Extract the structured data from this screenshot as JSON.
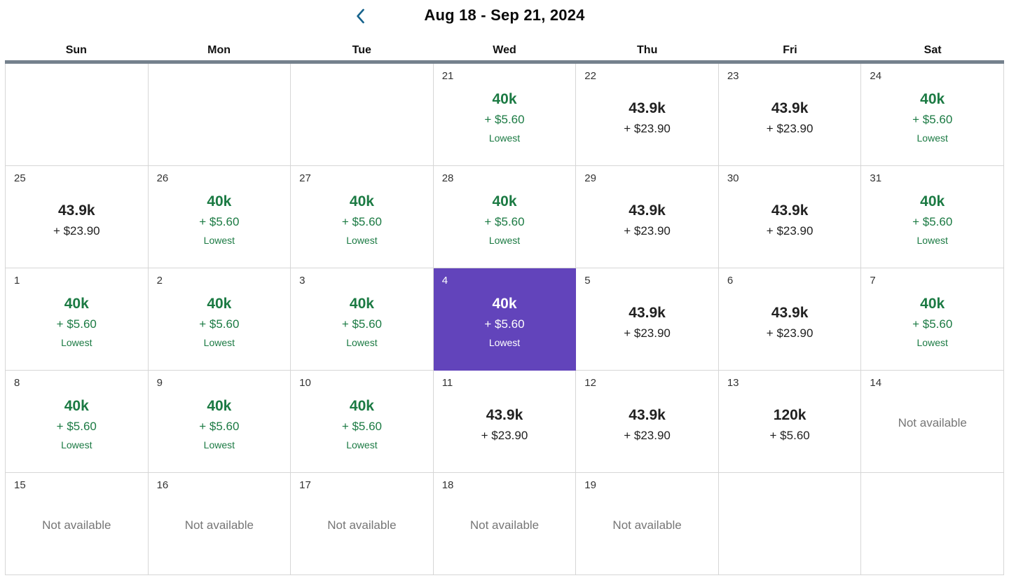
{
  "header": {
    "title": "Aug 18 - Sep 21, 2024"
  },
  "weekdays": [
    "Sun",
    "Mon",
    "Tue",
    "Wed",
    "Thu",
    "Fri",
    "Sat"
  ],
  "labels": {
    "not_available": "Not available",
    "lowest_tag": "Lowest"
  },
  "colors": {
    "lowest_green": "#1b7a43",
    "selected_purple": "#6244bb",
    "header_bar_gray": "#75818d",
    "grid_border": "#d6d6d6",
    "unavailable_gray": "#767676",
    "chevron_blue": "#16638c",
    "price_black": "#212121"
  },
  "weeks": [
    [
      {
        "empty": true
      },
      {
        "empty": true
      },
      {
        "empty": true
      },
      {
        "date": "21",
        "miles": "40k",
        "fee": "+ $5.60",
        "lowest": true
      },
      {
        "date": "22",
        "miles": "43.9k",
        "fee": "+ $23.90"
      },
      {
        "date": "23",
        "miles": "43.9k",
        "fee": "+ $23.90"
      },
      {
        "date": "24",
        "miles": "40k",
        "fee": "+ $5.60",
        "lowest": true
      }
    ],
    [
      {
        "date": "25",
        "miles": "43.9k",
        "fee": "+ $23.90"
      },
      {
        "date": "26",
        "miles": "40k",
        "fee": "+ $5.60",
        "lowest": true
      },
      {
        "date": "27",
        "miles": "40k",
        "fee": "+ $5.60",
        "lowest": true
      },
      {
        "date": "28",
        "miles": "40k",
        "fee": "+ $5.60",
        "lowest": true
      },
      {
        "date": "29",
        "miles": "43.9k",
        "fee": "+ $23.90"
      },
      {
        "date": "30",
        "miles": "43.9k",
        "fee": "+ $23.90"
      },
      {
        "date": "31",
        "miles": "40k",
        "fee": "+ $5.60",
        "lowest": true
      }
    ],
    [
      {
        "date": "1",
        "miles": "40k",
        "fee": "+ $5.60",
        "lowest": true
      },
      {
        "date": "2",
        "miles": "40k",
        "fee": "+ $5.60",
        "lowest": true
      },
      {
        "date": "3",
        "miles": "40k",
        "fee": "+ $5.60",
        "lowest": true
      },
      {
        "date": "4",
        "miles": "40k",
        "fee": "+ $5.60",
        "lowest": true,
        "selected": true
      },
      {
        "date": "5",
        "miles": "43.9k",
        "fee": "+ $23.90"
      },
      {
        "date": "6",
        "miles": "43.9k",
        "fee": "+ $23.90"
      },
      {
        "date": "7",
        "miles": "40k",
        "fee": "+ $5.60",
        "lowest": true
      }
    ],
    [
      {
        "date": "8",
        "miles": "40k",
        "fee": "+ $5.60",
        "lowest": true
      },
      {
        "date": "9",
        "miles": "40k",
        "fee": "+ $5.60",
        "lowest": true
      },
      {
        "date": "10",
        "miles": "40k",
        "fee": "+ $5.60",
        "lowest": true
      },
      {
        "date": "11",
        "miles": "43.9k",
        "fee": "+ $23.90"
      },
      {
        "date": "12",
        "miles": "43.9k",
        "fee": "+ $23.90"
      },
      {
        "date": "13",
        "miles": "120k",
        "fee": "+ $5.60"
      },
      {
        "date": "14",
        "unavailable": true
      }
    ],
    [
      {
        "date": "15",
        "unavailable": true
      },
      {
        "date": "16",
        "unavailable": true
      },
      {
        "date": "17",
        "unavailable": true
      },
      {
        "date": "18",
        "unavailable": true
      },
      {
        "date": "19",
        "unavailable": true
      },
      {
        "empty": true
      },
      {
        "empty": true
      }
    ]
  ]
}
